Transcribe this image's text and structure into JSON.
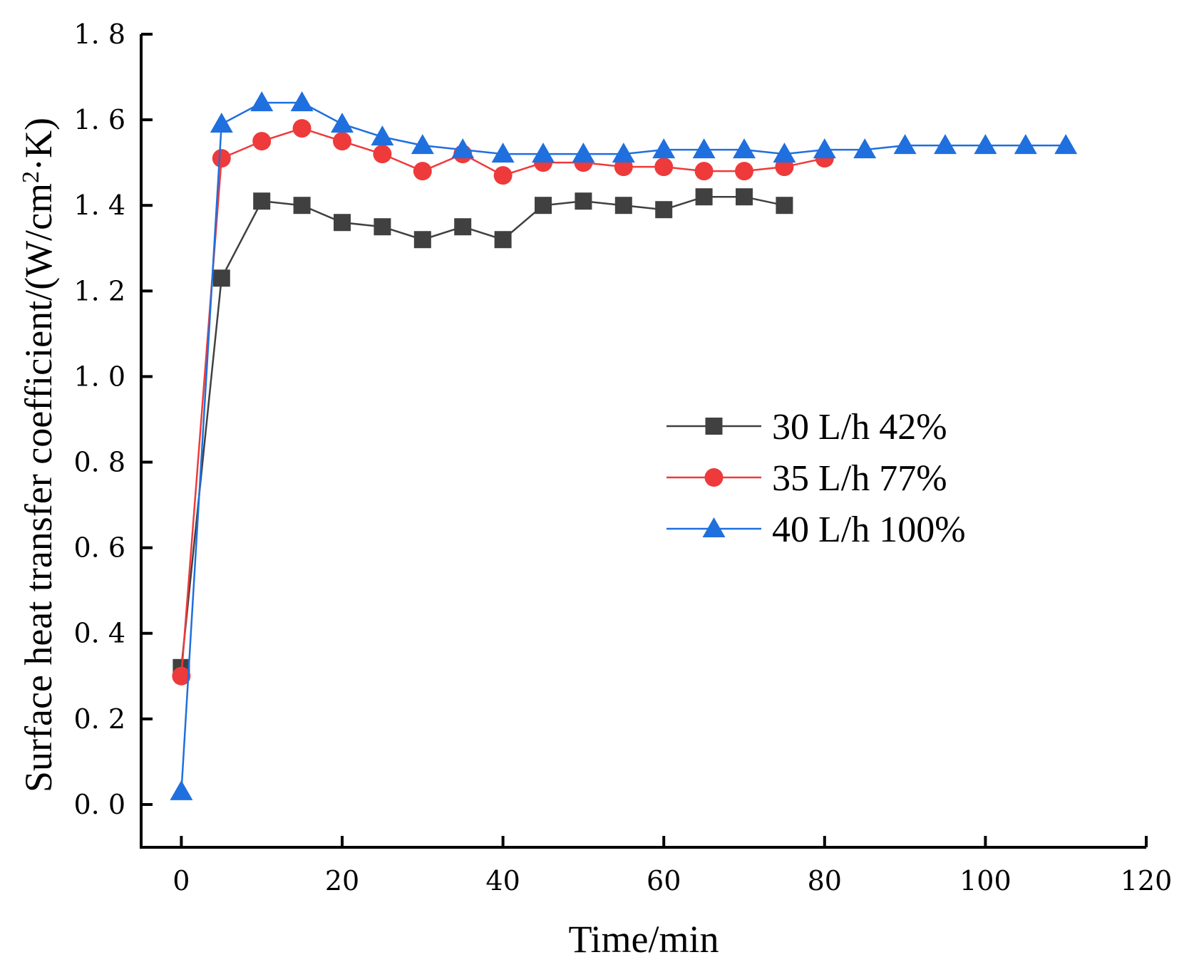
{
  "chart_data": {
    "type": "line",
    "title": "",
    "xlabel": "Time/min",
    "ylabel": "Surface heat transfer coefficient/(W/cm",
    "ylabel_sup": "2",
    "ylabel_suffix": "·K)",
    "xlim": [
      -5,
      120
    ],
    "ylim": [
      -0.1,
      1.8
    ],
    "xticks": [
      0,
      20,
      40,
      60,
      80,
      100,
      120
    ],
    "xtick_labels": [
      "0",
      "20",
      "40",
      "60",
      "80",
      "100",
      "120"
    ],
    "yticks": [
      0.0,
      0.2,
      0.4,
      0.6,
      0.8,
      1.0,
      1.2,
      1.4,
      1.6,
      1.8
    ],
    "ytick_labels": [
      "0. 0",
      "0. 2",
      "0. 4",
      "0. 6",
      "0. 8",
      "1. 0",
      "1. 2",
      "1. 4",
      "1. 6",
      "1. 8"
    ],
    "grid": false,
    "legend_position": "center-right",
    "series": [
      {
        "name": "30 L/h 42%",
        "color": "#404040",
        "marker": "square",
        "x": [
          0,
          5,
          10,
          15,
          20,
          25,
          30,
          35,
          40,
          45,
          50,
          55,
          60,
          65,
          70,
          75
        ],
        "y": [
          0.32,
          1.23,
          1.41,
          1.4,
          1.36,
          1.35,
          1.32,
          1.35,
          1.32,
          1.4,
          1.41,
          1.4,
          1.39,
          1.42,
          1.42,
          1.4
        ]
      },
      {
        "name": "35 L/h 77%",
        "color": "#ee3a3a",
        "marker": "circle",
        "x": [
          0,
          5,
          10,
          15,
          20,
          25,
          30,
          35,
          40,
          45,
          50,
          55,
          60,
          65,
          70,
          75,
          80
        ],
        "y": [
          0.3,
          1.51,
          1.55,
          1.58,
          1.55,
          1.52,
          1.48,
          1.52,
          1.47,
          1.5,
          1.5,
          1.49,
          1.49,
          1.48,
          1.48,
          1.49,
          1.51
        ]
      },
      {
        "name": "40 L/h 100%",
        "color": "#1f6fde",
        "marker": "triangle",
        "x": [
          0,
          5,
          10,
          15,
          20,
          25,
          30,
          35,
          40,
          45,
          50,
          55,
          60,
          65,
          70,
          75,
          80,
          85,
          90,
          95,
          100,
          105,
          110
        ],
        "y": [
          0.03,
          1.59,
          1.64,
          1.64,
          1.59,
          1.56,
          1.54,
          1.53,
          1.52,
          1.52,
          1.52,
          1.52,
          1.53,
          1.53,
          1.53,
          1.52,
          1.53,
          1.53,
          1.54,
          1.54,
          1.54,
          1.54,
          1.54
        ]
      }
    ]
  }
}
